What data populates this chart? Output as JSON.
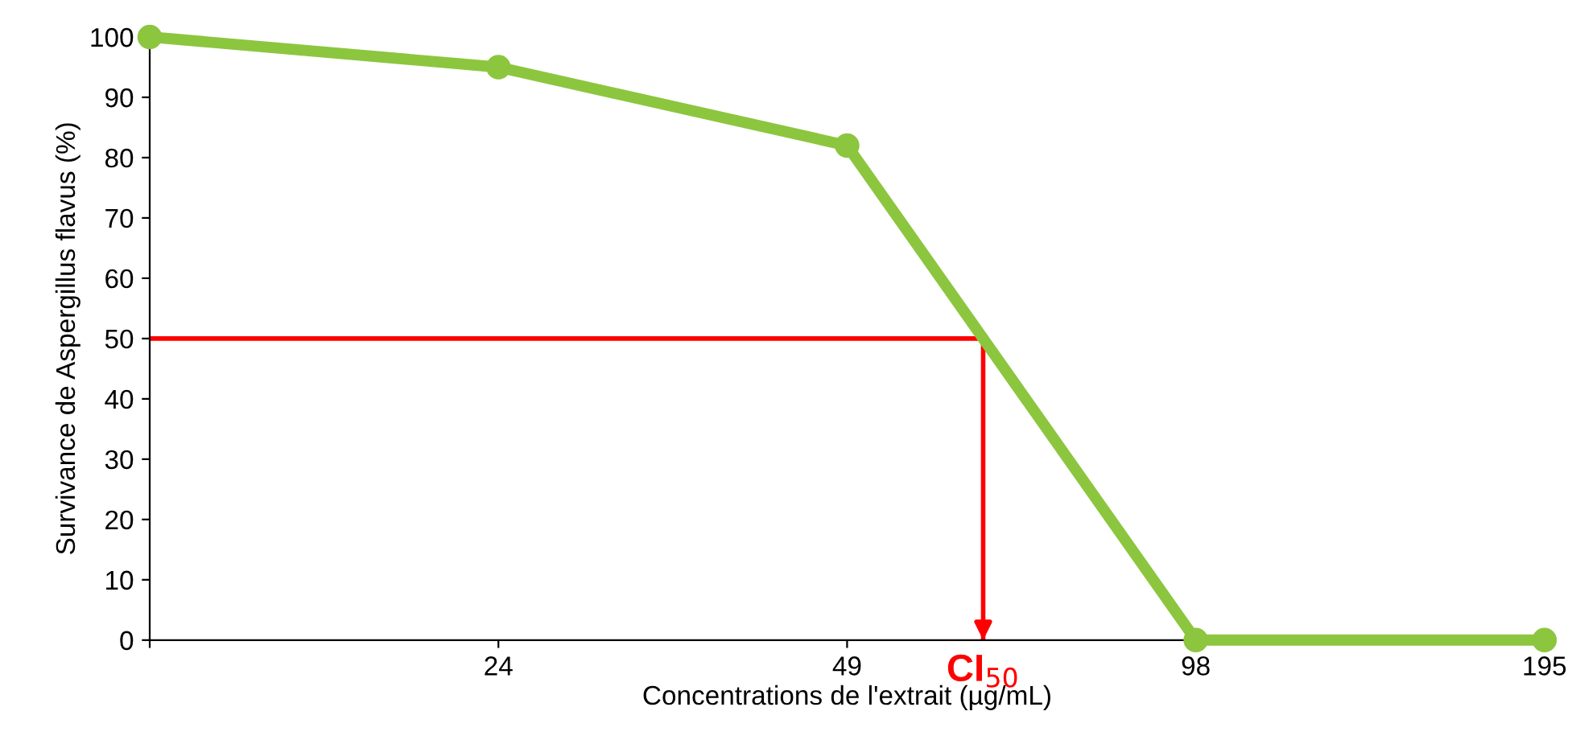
{
  "chart_data": {
    "type": "line",
    "xlabel": "Concentrations de l'extrait (µg/mL)",
    "ylabel": "Survivance de Aspergillus flavus (%)",
    "categories": [
      null,
      "24",
      "49",
      "98",
      "195"
    ],
    "series": [
      {
        "color": "#8cc63f",
        "values": [
          100,
          95,
          82,
          0,
          0
        ]
      }
    ],
    "ylim": [
      0,
      100
    ],
    "yticks": [
      0,
      10,
      20,
      30,
      40,
      50,
      60,
      70,
      80,
      90,
      100
    ],
    "marker": "circle",
    "line_style": "solid",
    "grid": false,
    "ref_lines": [
      {
        "axis": "y",
        "value": 50,
        "color": "#ff0000"
      }
    ],
    "annotations": [
      "CI$_{50}$"
    ]
  }
}
